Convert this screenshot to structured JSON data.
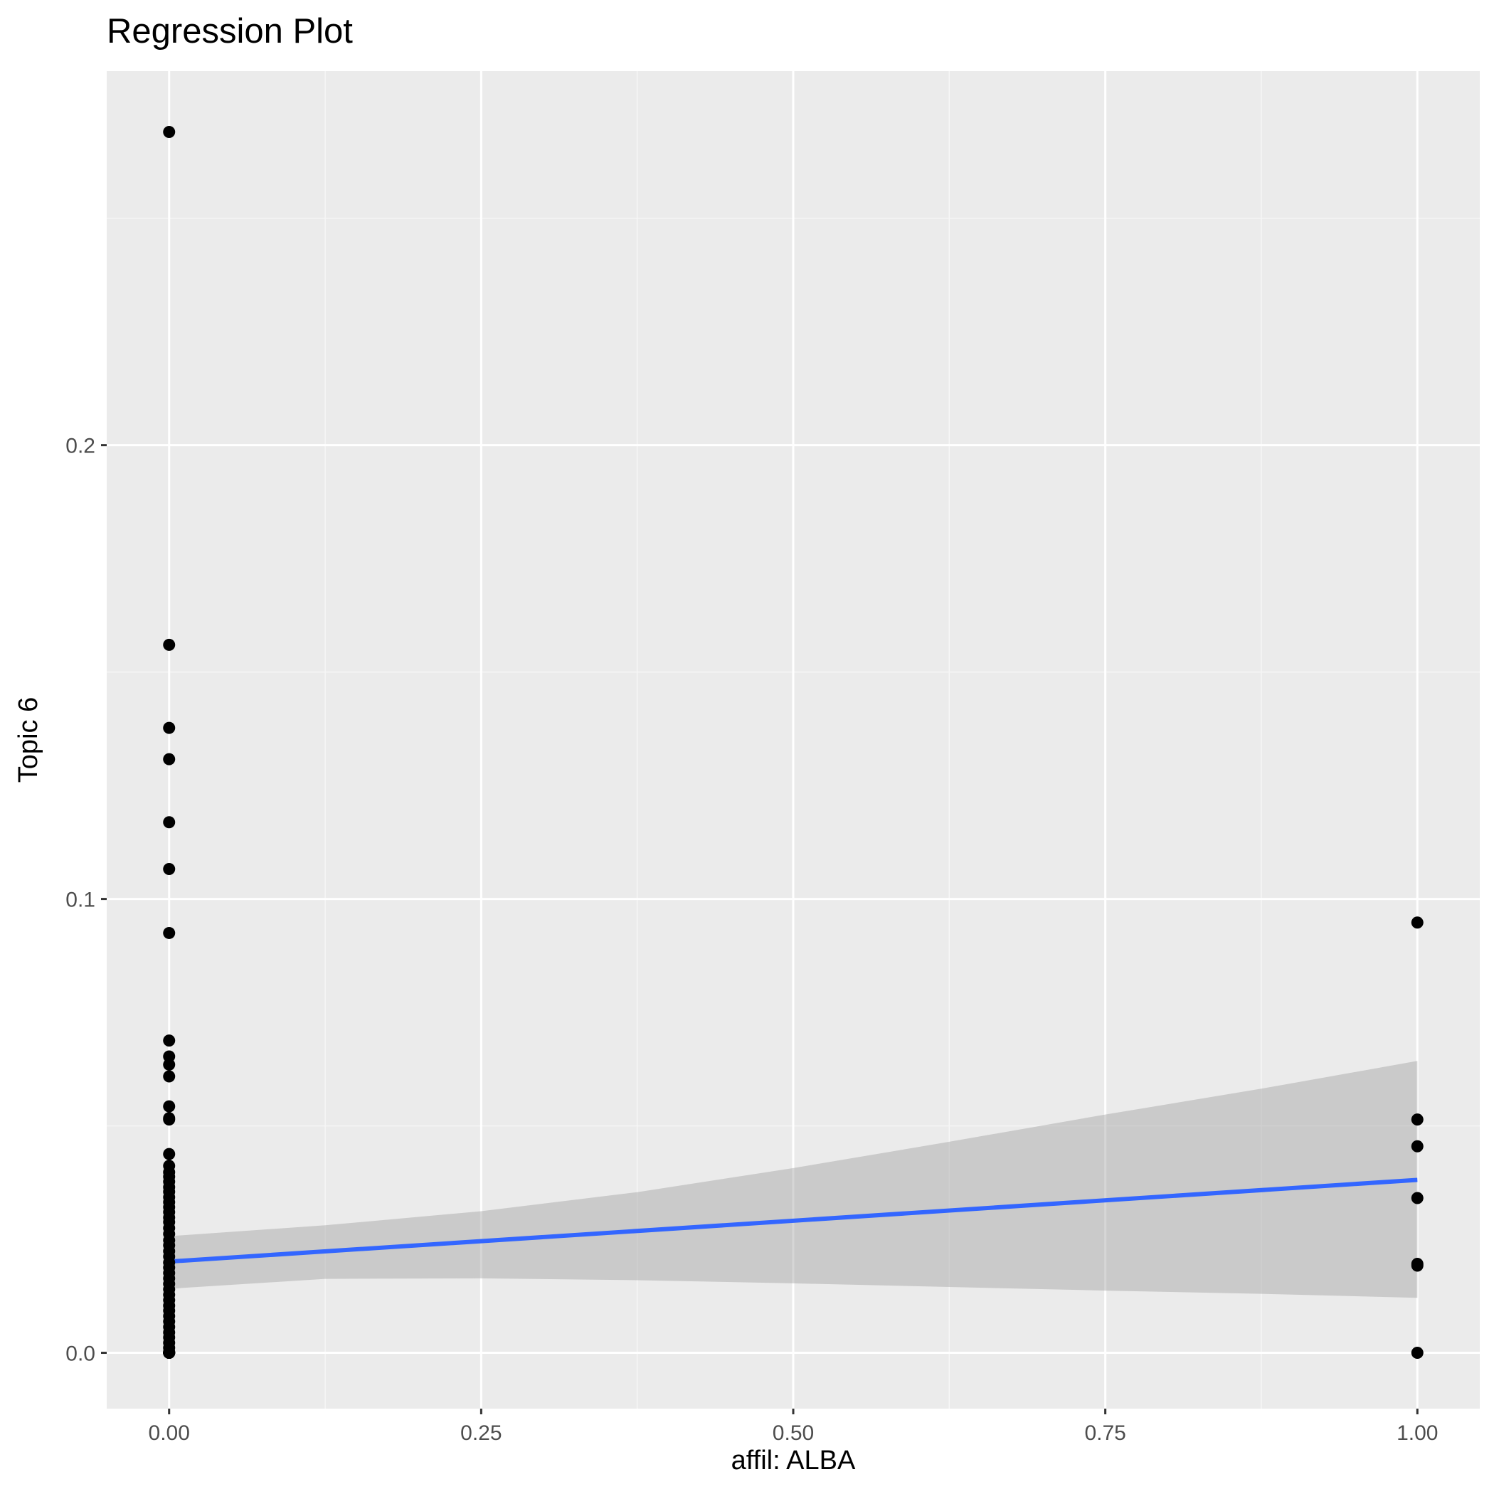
{
  "chart_data": {
    "type": "scatter",
    "title": "Regression Plot",
    "xlabel": "affil: ALBA",
    "ylabel": "Topic 6",
    "xlim": [
      -0.05,
      1.05
    ],
    "ylim": [
      -0.0123,
      0.2824
    ],
    "x_ticks": [
      0.0,
      0.25,
      0.5,
      0.75,
      1.0
    ],
    "x_tick_labels": [
      "0.00",
      "0.25",
      "0.50",
      "0.75",
      "1.00"
    ],
    "x_minor_ticks": [
      0.125,
      0.375,
      0.625,
      0.875
    ],
    "y_ticks": [
      0.0,
      0.1,
      0.2
    ],
    "y_tick_labels": [
      "0.0",
      "0.1",
      "0.2"
    ],
    "y_minor_ticks": [
      0.05,
      0.15,
      0.25
    ],
    "grid": true,
    "legend": "none",
    "colors": {
      "panel_background": "#ebebeb",
      "grid_major": "#ffffff",
      "grid_minor": "#f6f6f6",
      "points": "#000000",
      "regression_line": "#3366ff",
      "confidence_band": "#999999"
    },
    "series": [
      {
        "x": [
          0,
          0,
          0,
          0,
          0,
          0,
          0,
          0,
          0,
          0,
          0,
          0,
          0,
          0,
          0,
          0,
          0,
          0,
          0,
          0,
          0,
          0,
          0,
          0,
          0,
          0,
          0,
          0,
          0,
          0,
          0,
          0,
          0,
          0,
          0,
          0,
          0,
          0,
          0,
          0,
          0,
          0,
          0,
          0,
          0,
          0,
          0,
          0,
          0,
          0,
          0,
          0,
          0,
          0,
          0,
          0,
          0,
          1,
          1,
          1,
          1,
          1,
          1,
          1
        ],
        "y": [
          0.269,
          0.156,
          0.1377,
          0.1308,
          0.1169,
          0.1066,
          0.0925,
          0.0688,
          0.0653,
          0.0635,
          0.0609,
          0.0543,
          0.0517,
          0.0514,
          0.0438,
          0.0412,
          0.0398,
          0.0388,
          0.0377,
          0.0365,
          0.0355,
          0.0343,
          0.0332,
          0.0321,
          0.031,
          0.0298,
          0.0288,
          0.0275,
          0.0262,
          0.0248,
          0.0237,
          0.0224,
          0.0212,
          0.0199,
          0.0188,
          0.0176,
          0.0164,
          0.0152,
          0.014,
          0.0128,
          0.0116,
          0.0104,
          0.0093,
          0.0081,
          0.0069,
          0.0057,
          0.0045,
          0.0034,
          0.0022,
          0.0011,
          0.0002,
          0.0,
          0.0,
          0.0,
          0.0,
          0.0,
          0.0,
          0.0948,
          0.0514,
          0.0455,
          0.0341,
          0.0196,
          0.0192,
          0.0
        ]
      }
    ],
    "regression": {
      "method": "lm",
      "x": [
        0,
        1
      ],
      "y": [
        0.0201,
        0.0381
      ],
      "band_x": [
        0,
        0.125,
        0.25,
        0.375,
        0.5,
        0.625,
        0.75,
        0.875,
        1.0
      ],
      "band_lower": [
        0.0141,
        0.0163,
        0.0164,
        0.016,
        0.0153,
        0.0145,
        0.0137,
        0.013,
        0.0121
      ],
      "band_upper": [
        0.0257,
        0.0281,
        0.0312,
        0.0354,
        0.0407,
        0.0465,
        0.0525,
        0.0582,
        0.0643
      ]
    }
  }
}
